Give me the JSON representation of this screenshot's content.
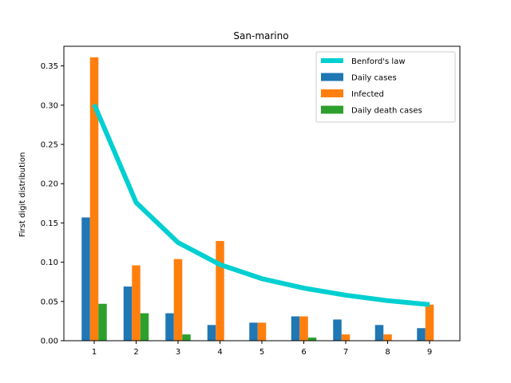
{
  "chart_data": {
    "type": "bar",
    "title": "San-marino",
    "xlabel": "",
    "ylabel": "First digit distribution",
    "categories": [
      "1",
      "2",
      "3",
      "4",
      "5",
      "6",
      "7",
      "8",
      "9"
    ],
    "ylim": [
      0,
      0.375
    ],
    "yticks": [
      "0.00",
      "0.05",
      "0.10",
      "0.15",
      "0.20",
      "0.25",
      "0.30",
      "0.35"
    ],
    "legend_position": "top-right",
    "grid": false,
    "series": [
      {
        "name": "Daily cases",
        "kind": "bar",
        "color": "#1f77b4",
        "values": [
          0.157,
          0.069,
          0.035,
          0.02,
          0.023,
          0.031,
          0.027,
          0.02,
          0.016
        ]
      },
      {
        "name": "Infected",
        "kind": "bar",
        "color": "#ff7f0e",
        "values": [
          0.361,
          0.096,
          0.104,
          0.127,
          0.023,
          0.031,
          0.008,
          0.008,
          0.046
        ]
      },
      {
        "name": "Daily death cases",
        "kind": "bar",
        "color": "#2ca02c",
        "values": [
          0.047,
          0.035,
          0.008,
          0.0,
          0.0,
          0.004,
          0.0,
          0.0,
          0.0
        ]
      },
      {
        "name": "Benford's law",
        "kind": "line",
        "color": "#00cfd1",
        "values": [
          0.301,
          0.176,
          0.125,
          0.097,
          0.079,
          0.067,
          0.058,
          0.051,
          0.046
        ]
      }
    ]
  }
}
